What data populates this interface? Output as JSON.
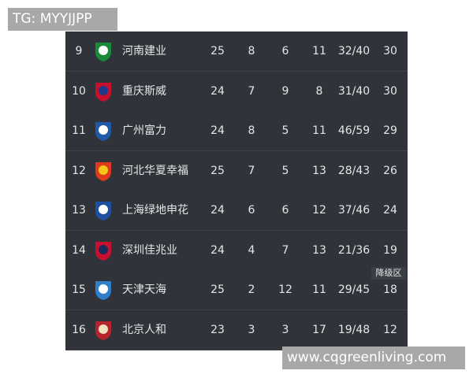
{
  "watermark_top": "TG: MYYJJPP",
  "watermark_bottom": "www.cqgreenliving.com",
  "zone_label": "降级区",
  "table": {
    "rows": [
      [
        9,
        "河南建业",
        25,
        8,
        6,
        11,
        "32/40",
        30
      ],
      [
        10,
        "重庆斯威",
        24,
        7,
        9,
        8,
        "31/40",
        30
      ],
      [
        11,
        "广州富力",
        24,
        8,
        5,
        11,
        "46/59",
        29
      ],
      [
        12,
        "河北华夏幸福",
        25,
        7,
        5,
        13,
        "28/43",
        26
      ],
      [
        13,
        "上海绿地申花",
        24,
        6,
        6,
        12,
        "37/46",
        24
      ],
      [
        14,
        "深圳佳兆业",
        24,
        4,
        7,
        13,
        "21/36",
        19
      ],
      [
        15,
        "天津天海",
        25,
        2,
        12,
        11,
        "29/45",
        18
      ],
      [
        16,
        "北京人和",
        23,
        3,
        3,
        17,
        "19/48",
        12
      ]
    ]
  }
}
